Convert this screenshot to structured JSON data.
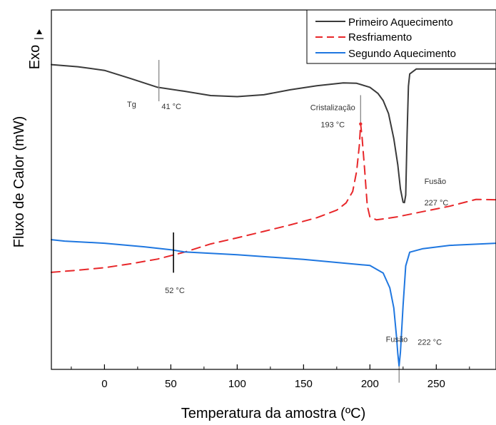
{
  "chart_data": {
    "type": "line",
    "xlabel": "Temperatura da amostra (ºC)",
    "ylabel": "Fluxo de Calor (mW)",
    "exo_label": "Exo",
    "xlim": [
      -40,
      295
    ],
    "ylim": [
      0,
      100
    ],
    "xticks": [
      0,
      50,
      100,
      150,
      200,
      250
    ],
    "xtick_labels": [
      "0",
      "50",
      "100",
      "150",
      "200",
      "250"
    ],
    "y_tick_labels_shown": false,
    "grid": false,
    "legend_position": "top-right",
    "series": [
      {
        "name": "Primeiro Aquecimento",
        "color": "#3a3a3a",
        "dash": "solid",
        "x": [
          -40,
          -20,
          0,
          20,
          40,
          60,
          80,
          100,
          120,
          140,
          160,
          180,
          190,
          200,
          206,
          210,
          214,
          218,
          221,
          223,
          225,
          226,
          227,
          228,
          229,
          230,
          235,
          250,
          270,
          295
        ],
        "y": [
          84.8,
          84.2,
          83.2,
          80.9,
          78.5,
          77.4,
          76.2,
          75.9,
          76.4,
          77.8,
          78.9,
          79.7,
          79.6,
          78.5,
          76.8,
          74.8,
          71.2,
          64.2,
          56.9,
          50.2,
          46.5,
          46.4,
          48.5,
          65.2,
          78.8,
          82.2,
          83.6,
          83.6,
          83.6,
          83.6
        ]
      },
      {
        "name": "Resfriamento",
        "color": "#e8272a",
        "dash": "dashed",
        "x": [
          -40,
          -20,
          0,
          20,
          40,
          60,
          80,
          100,
          120,
          140,
          160,
          175,
          182,
          187,
          190,
          192,
          193,
          194,
          196,
          198,
          200,
          205,
          220,
          240,
          260,
          280,
          295
        ],
        "y": [
          27.0,
          27.6,
          28.3,
          29.4,
          30.7,
          32.6,
          34.9,
          36.6,
          38.4,
          40.2,
          42.2,
          44.3,
          46.3,
          49.5,
          55.1,
          62.3,
          68.3,
          64.9,
          55.7,
          45.6,
          42.4,
          41.6,
          42.4,
          43.9,
          45.4,
          47.3,
          47.2
        ]
      },
      {
        "name": "Segundo Aquecimento",
        "color": "#1f77e0",
        "dash": "solid",
        "x": [
          -40,
          -30,
          0,
          30,
          50,
          60,
          100,
          150,
          200,
          210,
          215,
          218,
          220,
          221,
          222,
          223,
          225,
          227,
          230,
          240,
          260,
          295
        ],
        "y": [
          36.1,
          35.7,
          35.1,
          34.1,
          33.3,
          32.7,
          31.9,
          30.6,
          28.9,
          26.8,
          22.7,
          17.1,
          9.3,
          4.4,
          0.9,
          4.8,
          17.8,
          28.8,
          32.6,
          33.6,
          34.5,
          35.1
        ]
      }
    ],
    "annotations": [
      {
        "text": "Tg",
        "x": 17,
        "y": 73
      },
      {
        "text": "41 °C",
        "x": 43,
        "y": 72.4
      },
      {
        "text": "Cristalização",
        "x": 172,
        "y": 72.1
      },
      {
        "text": "193 °C",
        "x": 172,
        "y": 67.4
      },
      {
        "text": "Fusão",
        "x": 241,
        "y": 51.6
      },
      {
        "text": "227 °C",
        "x": 241,
        "y": 45.6
      },
      {
        "text": "52 °C",
        "x": 53,
        "y": 21.2
      },
      {
        "text": "Fusão",
        "x": 212,
        "y": 7.6
      },
      {
        "text": "222 °C",
        "x": 236,
        "y": 6.8
      }
    ],
    "markers": [
      {
        "x": 41,
        "y_from": 74.6,
        "y_to": 86.1,
        "color": "#888888"
      },
      {
        "x": 193,
        "y_from": 68.3,
        "y_to": 76.3,
        "color": "#888888"
      },
      {
        "x": 52,
        "y_from": 26.9,
        "y_to": 38.1,
        "color": "#000000"
      },
      {
        "x": 222,
        "y_from": -3.7,
        "y_to": 0.9,
        "color": "#888888"
      }
    ]
  }
}
